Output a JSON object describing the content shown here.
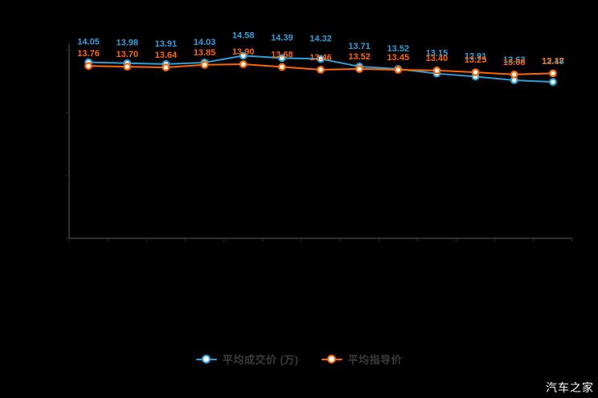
{
  "watermark": "汽车之家",
  "legend": {
    "items": [
      {
        "label": "平均成交价 (万)",
        "color": "#2f9fd8"
      },
      {
        "label": "平均指导价",
        "color": "#ff6600"
      }
    ],
    "text_color": "#3c3c3c"
  },
  "chart_data": {
    "type": "line",
    "title": "",
    "xlabel": "",
    "ylabel": "",
    "x_tick_labels_visible": false,
    "num_points": 13,
    "series": [
      {
        "name": "平均成交价 (万)",
        "color": "#2f9fd8",
        "values": [
          14.05,
          13.98,
          13.91,
          14.03,
          14.58,
          14.39,
          14.32,
          13.71,
          13.52,
          13.15,
          12.91,
          12.62,
          12.48
        ]
      },
      {
        "name": "平均指导价",
        "color": "#ff6600",
        "values": [
          13.76,
          13.7,
          13.64,
          13.85,
          13.9,
          13.68,
          13.46,
          13.52,
          13.45,
          13.4,
          13.25,
          13.08,
          13.17
        ]
      }
    ],
    "ylim": [
      0,
      15.5
    ],
    "grid": false,
    "data_labels": true,
    "legend_position": "bottom",
    "background_color": "#000000",
    "axis_color": "#2e2e2e"
  }
}
